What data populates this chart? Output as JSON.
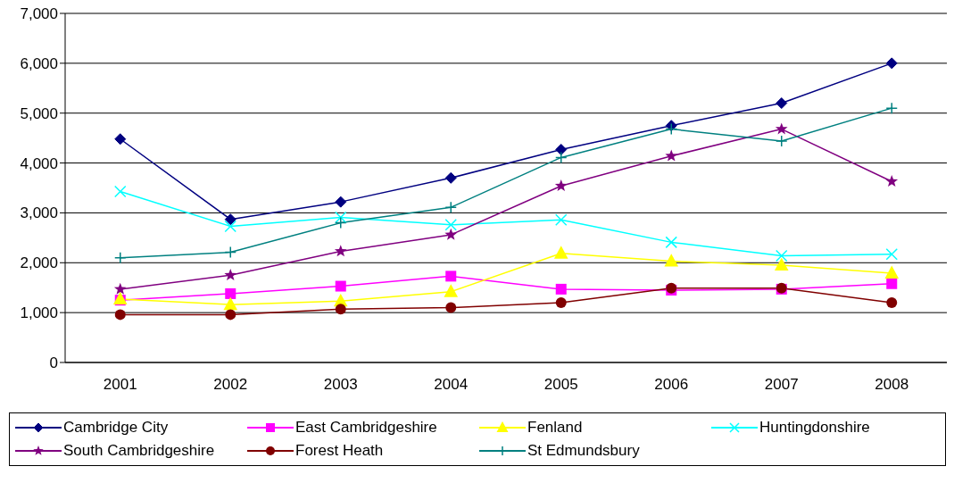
{
  "chart_data": {
    "type": "line",
    "categories": [
      "2001",
      "2002",
      "2003",
      "2004",
      "2005",
      "2006",
      "2007",
      "2008"
    ],
    "ylim": [
      0,
      7000
    ],
    "yticks": [
      {
        "value": 0,
        "label": "0"
      },
      {
        "value": 1000,
        "label": "1,000"
      },
      {
        "value": 2000,
        "label": "2,000"
      },
      {
        "value": 3000,
        "label": "3,000"
      },
      {
        "value": 4000,
        "label": "4,000"
      },
      {
        "value": 5000,
        "label": "5,000"
      },
      {
        "value": 6000,
        "label": "6,000"
      },
      {
        "value": 7000,
        "label": "7,000"
      }
    ],
    "grid": "y",
    "legend": "bottom",
    "line_style": "solid",
    "series": [
      {
        "name": "Cambridge City",
        "color": "#000080",
        "marker": "diamond",
        "values": [
          4480,
          2870,
          3220,
          3700,
          4270,
          4750,
          5200,
          6000
        ]
      },
      {
        "name": "East Cambridgeshire",
        "color": "#ff00ff",
        "marker": "square",
        "values": [
          1250,
          1380,
          1530,
          1730,
          1470,
          1450,
          1470,
          1580
        ]
      },
      {
        "name": "Fenland",
        "color": "#ffff00",
        "marker": "triangle",
        "values": [
          1270,
          1160,
          1230,
          1420,
          2190,
          2030,
          1950,
          1790
        ]
      },
      {
        "name": "Huntingdonshire",
        "color": "#00ffff",
        "marker": "x",
        "values": [
          3430,
          2730,
          2910,
          2760,
          2860,
          2410,
          2140,
          2170
        ]
      },
      {
        "name": "South Cambridgeshire",
        "color": "#800080",
        "marker": "star",
        "values": [
          1470,
          1750,
          2230,
          2560,
          3540,
          4140,
          4680,
          3630
        ]
      },
      {
        "name": "Forest Heath",
        "color": "#800000",
        "marker": "circle",
        "values": [
          960,
          960,
          1070,
          1100,
          1200,
          1490,
          1490,
          1200
        ]
      },
      {
        "name": "St Edmundsbury",
        "color": "#008080",
        "marker": "cross",
        "values": [
          2100,
          2210,
          2800,
          3110,
          4110,
          4680,
          4440,
          5100
        ]
      }
    ]
  }
}
